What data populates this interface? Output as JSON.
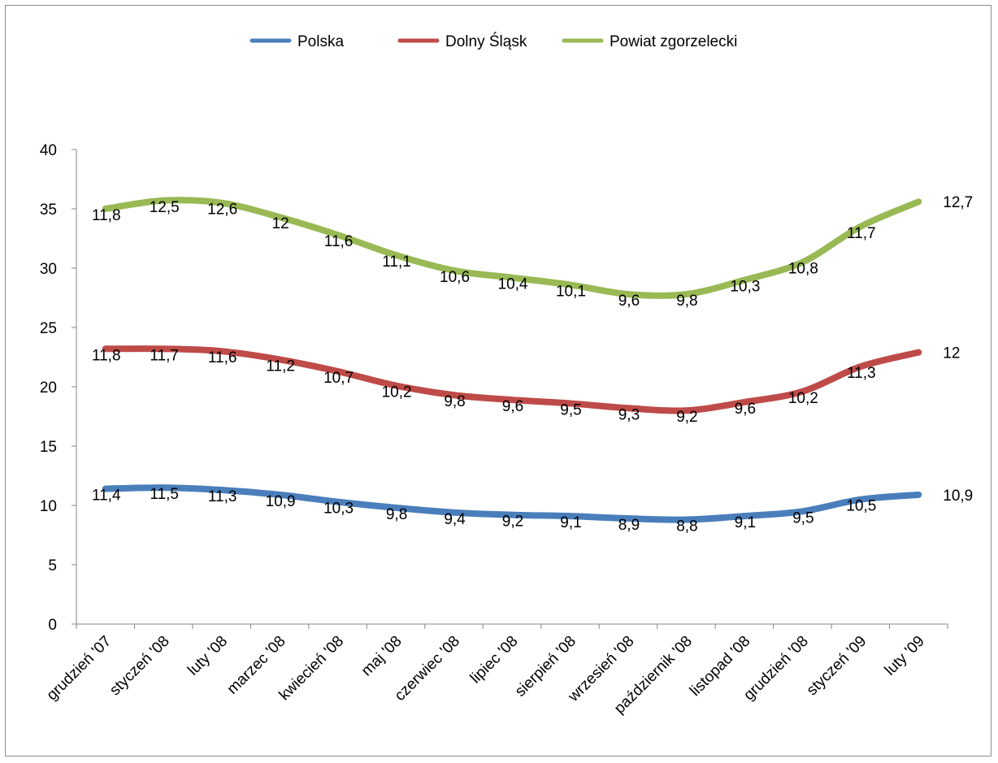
{
  "chart_data": {
    "type": "line",
    "title": "",
    "xlabel": "",
    "ylabel": "",
    "ylim": [
      0,
      40
    ],
    "y_ticks": [
      0,
      5,
      10,
      15,
      20,
      25,
      30,
      35,
      40
    ],
    "grid": false,
    "legend_position": "top",
    "categories": [
      "grudzień '07",
      "styczeń '08",
      "luty '08",
      "marzec '08",
      "kwiecień '08",
      "maj '08",
      "czerwiec '08",
      "lipiec '08",
      "sierpień '08",
      "wrzesień '08",
      "październik '08",
      "listopad '08",
      "grudzień '08",
      "styczeń '09",
      "luty '09"
    ],
    "series": [
      {
        "name": "Polska",
        "color": "#4a7ebb",
        "values": [
          11.4,
          11.5,
          11.3,
          10.9,
          10.3,
          9.8,
          9.4,
          9.2,
          9.1,
          8.9,
          8.8,
          9.1,
          9.5,
          10.5,
          10.9
        ],
        "labels": [
          "11,4",
          "11,5",
          "11,3",
          "10,9",
          "10,3",
          "9,8",
          "9,4",
          "9,2",
          "9,1",
          "8,9",
          "8,8",
          "9,1",
          "9,5",
          "10,5",
          "10,9"
        ]
      },
      {
        "name": "Dolny Śląsk",
        "color": "#be4b48",
        "values": [
          23.2,
          23.2,
          23.0,
          22.3,
          21.3,
          20.1,
          19.3,
          18.9,
          18.6,
          18.2,
          18.0,
          18.7,
          19.6,
          21.7,
          22.9
        ],
        "labels": [
          "11,8",
          "11,7",
          "11,6",
          "11,2",
          "10,7",
          "10,2",
          "9,8",
          "9,6",
          "9,5",
          "9,3",
          "9,2",
          "9,6",
          "10,2",
          "11,3",
          "12"
        ]
      },
      {
        "name": "Powiat zgorzelecki",
        "color": "#98b954",
        "values": [
          35.0,
          35.7,
          35.5,
          34.3,
          32.8,
          31.1,
          29.8,
          29.2,
          28.6,
          27.8,
          27.8,
          29.0,
          30.5,
          33.5,
          35.6
        ],
        "labels": [
          "11,8",
          "12,5",
          "12,6",
          "12",
          "11,6",
          "11,1",
          "10,6",
          "10,4",
          "10,1",
          "9,6",
          "9,8",
          "10,3",
          "10,8",
          "11,7",
          "12,7"
        ]
      }
    ]
  }
}
